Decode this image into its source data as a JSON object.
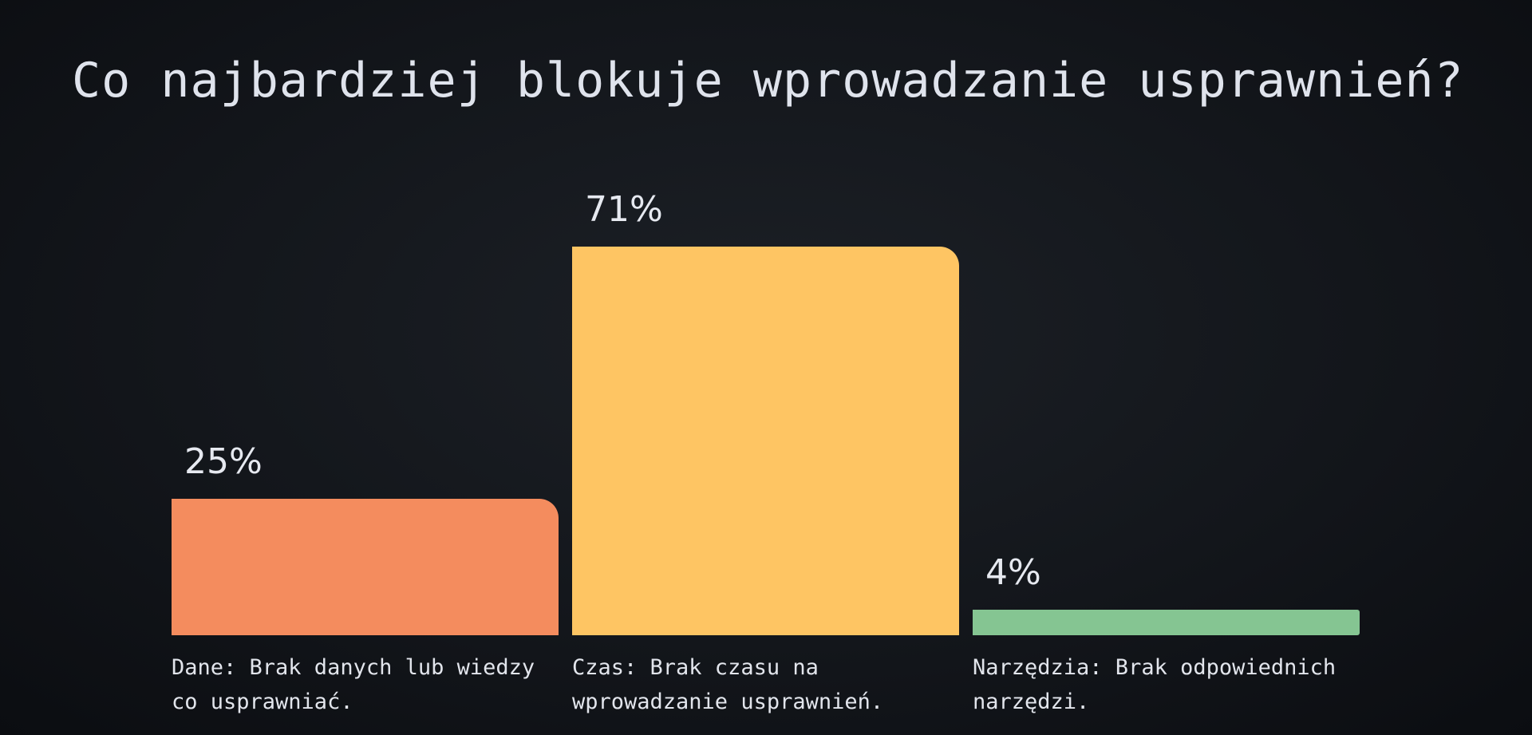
{
  "title": "Co najbardziej blokuje wprowadzanie usprawnień?",
  "chart_data": {
    "type": "bar",
    "ylim": [
      0,
      71
    ],
    "categories": [
      "Dane: Brak danych lub wiedzy co usprawniać.",
      "Czas: Brak czasu na wprowadzanie usprawnień.",
      "Narzędzia: Brak odpowiednich narzędzi."
    ],
    "values": [
      25,
      71,
      4
    ],
    "value_labels": [
      "25%",
      "71%",
      "4%"
    ],
    "colors": [
      "#f48c5e",
      "#fec563",
      "#85c592"
    ]
  }
}
